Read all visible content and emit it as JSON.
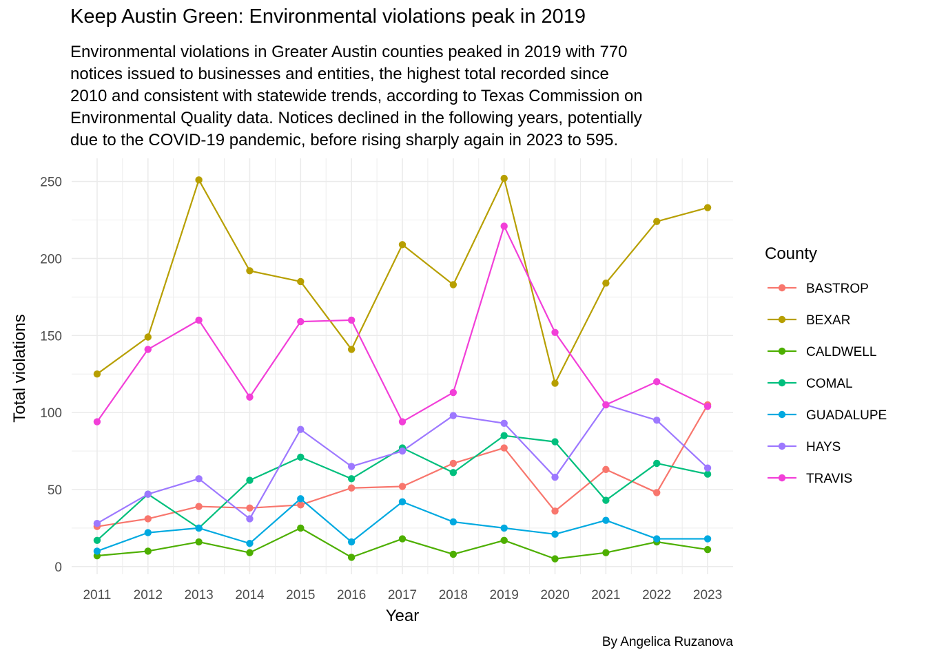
{
  "title": "Keep Austin Green: Environmental violations peak in 2019",
  "subtitle": "Environmental violations in Greater Austin counties peaked in 2019 with 770\nnotices issued to businesses and entities, the highest total recorded since\n2010 and consistent with statewide trends, according to Texas Commission on\nEnvironmental Quality data. Notices declined in the following years, potentially\ndue to the COVID-19 pandemic, before rising sharply again in 2023 to 595.",
  "caption": "By Angelica Ruzanova",
  "chart_data": {
    "type": "line",
    "xlabel": "Year",
    "ylabel": "Total violations",
    "legend_title": "County",
    "legend_position": "right",
    "grid": true,
    "x": [
      2011,
      2012,
      2013,
      2014,
      2015,
      2016,
      2017,
      2018,
      2019,
      2020,
      2021,
      2022,
      2023
    ],
    "xlim": [
      2010.5,
      2023.5
    ],
    "ylim": [
      -5,
      265
    ],
    "yticks": [
      0,
      50,
      100,
      150,
      200,
      250
    ],
    "series": [
      {
        "name": "BASTROP",
        "color": "#F8766D",
        "values": [
          26,
          31,
          39,
          38,
          40,
          51,
          52,
          67,
          77,
          36,
          63,
          48,
          105
        ]
      },
      {
        "name": "BEXAR",
        "color": "#B79F00",
        "values": [
          125,
          149,
          251,
          192,
          185,
          141,
          209,
          183,
          252,
          119,
          184,
          224,
          233
        ]
      },
      {
        "name": "CALDWELL",
        "color": "#4DAF00",
        "values": [
          7,
          10,
          16,
          9,
          25,
          6,
          18,
          8,
          17,
          5,
          9,
          16,
          11
        ]
      },
      {
        "name": "COMAL",
        "color": "#00BF7D",
        "values": [
          17,
          47,
          25,
          56,
          71,
          57,
          77,
          61,
          85,
          81,
          43,
          67,
          60
        ]
      },
      {
        "name": "GUADALUPE",
        "color": "#00A9E0",
        "values": [
          10,
          22,
          25,
          15,
          44,
          16,
          42,
          29,
          25,
          21,
          30,
          18,
          18
        ]
      },
      {
        "name": "HAYS",
        "color": "#9D78FF",
        "values": [
          28,
          47,
          57,
          31,
          89,
          65,
          75,
          98,
          93,
          58,
          105,
          95,
          64
        ]
      },
      {
        "name": "TRAVIS",
        "color": "#F23FD8",
        "values": [
          94,
          141,
          160,
          110,
          159,
          160,
          94,
          113,
          221,
          152,
          105,
          120,
          104
        ]
      }
    ]
  }
}
